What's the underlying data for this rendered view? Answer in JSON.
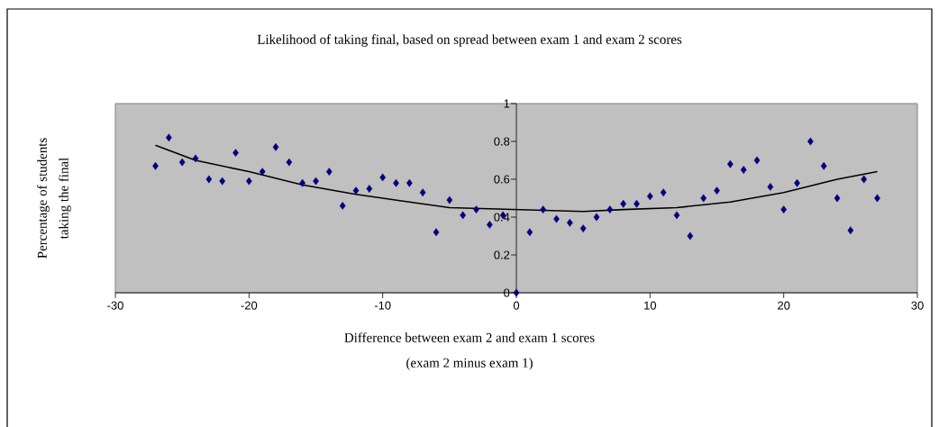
{
  "chart_data": {
    "type": "scatter",
    "title": "Likelihood of taking final, based on spread between exam 1 and exam 2 scores",
    "xlabel": "Difference between exam 2 and exam 1 scores\n(exam 2 minus exam 1)",
    "ylabel": "Percentage of students\ntaking the final",
    "xlim": [
      -30,
      30
    ],
    "ylim": [
      0,
      1
    ],
    "xticks": [
      -30,
      -20,
      -10,
      0,
      10,
      20,
      30
    ],
    "yticks": [
      0,
      0.2,
      0.4,
      0.6,
      0.8,
      1
    ],
    "series": [
      {
        "color": "#000080",
        "marker": "diamond",
        "x": [
          -27,
          -26,
          -25,
          -24,
          -23,
          -22,
          -21,
          -20,
          -19,
          -18,
          -17,
          -16,
          -15,
          -14,
          -13,
          -12,
          -11,
          -10,
          -9,
          -8,
          -7,
          -6,
          -5,
          -4,
          -3,
          -2,
          -1,
          0,
          1,
          2,
          3,
          4,
          5,
          6,
          7,
          8,
          9,
          10,
          11,
          12,
          13,
          14,
          15,
          16,
          17,
          18,
          19,
          20,
          21,
          22,
          23,
          24,
          25,
          26,
          27
        ],
        "values": [
          0.67,
          0.82,
          0.69,
          0.71,
          0.6,
          0.59,
          0.74,
          0.59,
          0.64,
          0.77,
          0.69,
          0.58,
          0.59,
          0.64,
          0.46,
          0.54,
          0.55,
          0.61,
          0.58,
          0.58,
          0.53,
          0.32,
          0.49,
          0.41,
          0.44,
          0.36,
          0.41,
          0,
          0.32,
          0.44,
          0.39,
          0.37,
          0.34,
          0.4,
          0.44,
          0.47,
          0.47,
          0.51,
          0.53,
          0.41,
          0.3,
          0.5,
          0.54,
          0.68,
          0.65,
          0.7,
          0.56,
          0.44,
          0.58,
          0.8,
          0.67,
          0.5,
          0.33,
          0.6,
          0.5
        ]
      },
      {
        "type": "line",
        "color": "#000000",
        "marker": "none",
        "x": [
          -27,
          -24,
          -20,
          -16,
          -12,
          -8,
          -5,
          0,
          5,
          8,
          12,
          16,
          20,
          24,
          27
        ],
        "values": [
          0.78,
          0.7,
          0.64,
          0.57,
          0.52,
          0.48,
          0.45,
          0.44,
          0.43,
          0.44,
          0.45,
          0.48,
          0.53,
          0.6,
          0.64
        ]
      }
    ]
  }
}
